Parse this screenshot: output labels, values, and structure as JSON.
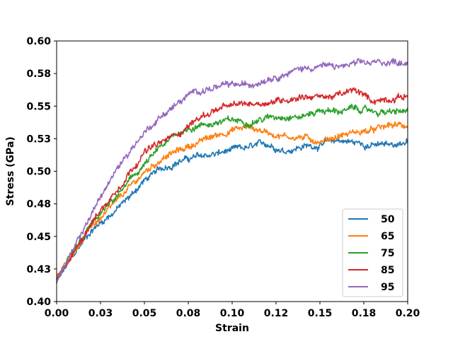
{
  "chart_data": {
    "type": "line",
    "title": "",
    "xlabel": "Strain",
    "ylabel": "Stress (GPa)",
    "xlim": [
      0.0,
      0.2
    ],
    "ylim": [
      0.4,
      0.6
    ],
    "x_ticks": [
      0.0,
      0.025,
      0.05,
      0.075,
      0.1,
      0.125,
      0.15,
      0.175,
      0.2
    ],
    "x_tick_labels": [
      "0.00",
      "0.03",
      "0.05",
      "0.08",
      "0.10",
      "0.12",
      "0.15",
      "0.18",
      "0.20"
    ],
    "y_ticks": [
      0.4,
      0.425,
      0.45,
      0.475,
      0.5,
      0.525,
      0.55,
      0.575,
      0.6
    ],
    "y_tick_labels": [
      "0.40",
      "0.43",
      "0.45",
      "0.48",
      "0.50",
      "0.53",
      "0.55",
      "0.58",
      "0.60"
    ],
    "grid": false,
    "legend_position": "lower-right",
    "x": [
      0.0,
      0.01,
      0.02,
      0.03,
      0.04,
      0.05,
      0.06,
      0.07,
      0.08,
      0.09,
      0.1,
      0.11,
      0.12,
      0.13,
      0.14,
      0.15,
      0.16,
      0.17,
      0.18,
      0.19,
      0.2
    ],
    "series": [
      {
        "name": "50",
        "color": "#1f77b4",
        "values": [
          0.415,
          0.436,
          0.455,
          0.466,
          0.478,
          0.493,
          0.502,
          0.508,
          0.511,
          0.513,
          0.516,
          0.518,
          0.521,
          0.516,
          0.519,
          0.52,
          0.524,
          0.522,
          0.52,
          0.52,
          0.523
        ]
      },
      {
        "name": "65",
        "color": "#ff7f0e",
        "values": [
          0.417,
          0.44,
          0.458,
          0.47,
          0.485,
          0.499,
          0.51,
          0.516,
          0.522,
          0.527,
          0.532,
          0.534,
          0.53,
          0.527,
          0.526,
          0.523,
          0.527,
          0.53,
          0.531,
          0.535,
          0.535
        ]
      },
      {
        "name": "75",
        "color": "#2ca02c",
        "values": [
          0.417,
          0.437,
          0.459,
          0.474,
          0.49,
          0.505,
          0.519,
          0.53,
          0.535,
          0.537,
          0.539,
          0.538,
          0.541,
          0.543,
          0.542,
          0.547,
          0.546,
          0.548,
          0.546,
          0.545,
          0.546
        ]
      },
      {
        "name": "85",
        "color": "#d62728",
        "values": [
          0.416,
          0.438,
          0.462,
          0.478,
          0.497,
          0.515,
          0.522,
          0.53,
          0.54,
          0.547,
          0.55,
          0.552,
          0.553,
          0.555,
          0.558,
          0.557,
          0.558,
          0.562,
          0.554,
          0.556,
          0.558
        ]
      },
      {
        "name": "95",
        "color": "#9467bd",
        "values": [
          0.416,
          0.44,
          0.468,
          0.492,
          0.513,
          0.53,
          0.543,
          0.553,
          0.562,
          0.564,
          0.566,
          0.566,
          0.572,
          0.575,
          0.579,
          0.581,
          0.58,
          0.582,
          0.583,
          0.584,
          0.584
        ]
      }
    ]
  }
}
